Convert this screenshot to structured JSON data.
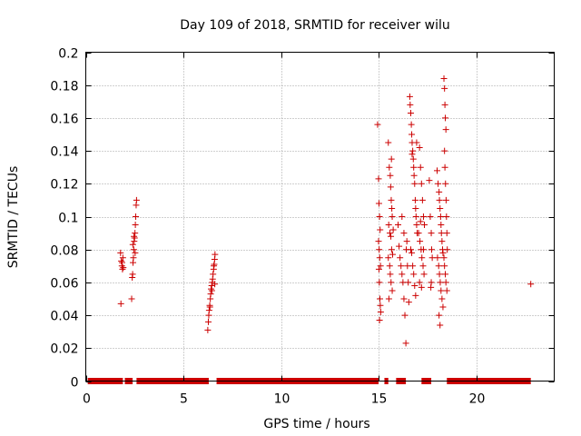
{
  "chart_data": {
    "type": "scatter",
    "title": "Day 109 of 2018, SRMTID for receiver wilu",
    "xlabel": "GPS time / hours",
    "ylabel": "SRMTID / TECUs",
    "xlim": [
      0,
      24
    ],
    "ylim": [
      0,
      0.2
    ],
    "xticks": [
      0,
      5,
      10,
      15,
      20
    ],
    "xtick_labels": [
      "0",
      "5",
      "10",
      "15",
      "20"
    ],
    "yticks": [
      0,
      0.02,
      0.04,
      0.06,
      0.08,
      0.1,
      0.12,
      0.14,
      0.16,
      0.18,
      0.2
    ],
    "ytick_labels": [
      "0",
      "0.02",
      "0.04",
      "0.06",
      "0.08",
      "0.1",
      "0.12",
      "0.14",
      "0.16",
      "0.18",
      "0.2"
    ],
    "grid": true,
    "marker": "+",
    "color": "#cc0000",
    "series": [
      {
        "points": [
          [
            1.78,
            0.078
          ],
          [
            1.82,
            0.073
          ],
          [
            1.85,
            0.07
          ],
          [
            1.88,
            0.068
          ],
          [
            1.8,
            0.047
          ],
          [
            1.9,
            0.075
          ],
          [
            1.86,
            0.072
          ],
          [
            1.92,
            0.069
          ],
          [
            2.35,
            0.05
          ],
          [
            2.38,
            0.063
          ],
          [
            2.4,
            0.065
          ],
          [
            2.42,
            0.072
          ],
          [
            2.44,
            0.075
          ],
          [
            2.46,
            0.08
          ],
          [
            2.48,
            0.085
          ],
          [
            2.5,
            0.087
          ],
          [
            2.52,
            0.09
          ],
          [
            2.54,
            0.095
          ],
          [
            2.56,
            0.1
          ],
          [
            2.58,
            0.107
          ],
          [
            2.6,
            0.11
          ],
          [
            2.47,
            0.088
          ],
          [
            2.53,
            0.078
          ],
          [
            2.41,
            0.083
          ],
          [
            6.25,
            0.031
          ],
          [
            6.28,
            0.036
          ],
          [
            6.3,
            0.04
          ],
          [
            6.32,
            0.043
          ],
          [
            6.35,
            0.046
          ],
          [
            6.38,
            0.05
          ],
          [
            6.4,
            0.053
          ],
          [
            6.42,
            0.056
          ],
          [
            6.45,
            0.058
          ],
          [
            6.48,
            0.06
          ],
          [
            6.5,
            0.062
          ],
          [
            6.52,
            0.065
          ],
          [
            6.55,
            0.068
          ],
          [
            6.58,
            0.071
          ],
          [
            6.6,
            0.074
          ],
          [
            6.62,
            0.077
          ],
          [
            6.36,
            0.045
          ],
          [
            6.46,
            0.055
          ],
          [
            6.56,
            0.07
          ],
          [
            6.61,
            0.059
          ],
          [
            14.95,
            0.156
          ],
          [
            15.0,
            0.123
          ],
          [
            15.02,
            0.108
          ],
          [
            15.05,
            0.1
          ],
          [
            15.08,
            0.092
          ],
          [
            15.0,
            0.085
          ],
          [
            15.03,
            0.08
          ],
          [
            15.06,
            0.075
          ],
          [
            15.1,
            0.07
          ],
          [
            15.02,
            0.068
          ],
          [
            15.04,
            0.06
          ],
          [
            15.07,
            0.05
          ],
          [
            15.09,
            0.046
          ],
          [
            15.11,
            0.042
          ],
          [
            15.05,
            0.037
          ],
          [
            15.5,
            0.145
          ],
          [
            15.55,
            0.13
          ],
          [
            15.6,
            0.125
          ],
          [
            15.62,
            0.118
          ],
          [
            15.65,
            0.11
          ],
          [
            15.68,
            0.105
          ],
          [
            15.7,
            0.1
          ],
          [
            15.52,
            0.095
          ],
          [
            15.58,
            0.09
          ],
          [
            15.63,
            0.088
          ],
          [
            15.67,
            0.08
          ],
          [
            15.72,
            0.077
          ],
          [
            15.5,
            0.075
          ],
          [
            15.57,
            0.07
          ],
          [
            15.6,
            0.065
          ],
          [
            15.64,
            0.06
          ],
          [
            15.7,
            0.055
          ],
          [
            15.53,
            0.05
          ],
          [
            15.66,
            0.135
          ],
          [
            15.75,
            0.092
          ],
          [
            16.0,
            0.095
          ],
          [
            16.05,
            0.082
          ],
          [
            16.1,
            0.075
          ],
          [
            16.15,
            0.07
          ],
          [
            16.2,
            0.065
          ],
          [
            16.25,
            0.06
          ],
          [
            16.3,
            0.05
          ],
          [
            16.35,
            0.04
          ],
          [
            16.4,
            0.023
          ],
          [
            16.42,
            0.08
          ],
          [
            16.45,
            0.085
          ],
          [
            16.48,
            0.07
          ],
          [
            16.52,
            0.06
          ],
          [
            16.55,
            0.048
          ],
          [
            16.3,
            0.09
          ],
          [
            16.2,
            0.1
          ],
          [
            16.6,
            0.173
          ],
          [
            16.62,
            0.168
          ],
          [
            16.65,
            0.163
          ],
          [
            16.68,
            0.156
          ],
          [
            16.7,
            0.15
          ],
          [
            16.72,
            0.145
          ],
          [
            16.75,
            0.14
          ],
          [
            16.78,
            0.135
          ],
          [
            16.8,
            0.13
          ],
          [
            16.82,
            0.125
          ],
          [
            16.85,
            0.12
          ],
          [
            16.88,
            0.11
          ],
          [
            16.9,
            0.105
          ],
          [
            16.92,
            0.1
          ],
          [
            16.95,
            0.095
          ],
          [
            16.98,
            0.09
          ],
          [
            16.65,
            0.08
          ],
          [
            16.7,
            0.078
          ],
          [
            16.75,
            0.07
          ],
          [
            16.8,
            0.065
          ],
          [
            16.85,
            0.058
          ],
          [
            16.9,
            0.052
          ],
          [
            16.72,
            0.138
          ],
          [
            16.95,
            0.145
          ],
          [
            17.1,
            0.142
          ],
          [
            17.15,
            0.13
          ],
          [
            17.2,
            0.12
          ],
          [
            17.25,
            0.11
          ],
          [
            17.3,
            0.1
          ],
          [
            17.35,
            0.095
          ],
          [
            17.05,
            0.09
          ],
          [
            17.12,
            0.085
          ],
          [
            17.18,
            0.08
          ],
          [
            17.22,
            0.075
          ],
          [
            17.28,
            0.07
          ],
          [
            17.33,
            0.065
          ],
          [
            17.1,
            0.06
          ],
          [
            17.2,
            0.057
          ],
          [
            17.3,
            0.08
          ],
          [
            17.15,
            0.097
          ],
          [
            17.6,
            0.122
          ],
          [
            17.65,
            0.1
          ],
          [
            17.7,
            0.09
          ],
          [
            17.72,
            0.08
          ],
          [
            17.75,
            0.075
          ],
          [
            17.7,
            0.06
          ],
          [
            17.68,
            0.057
          ],
          [
            18.0,
            0.128
          ],
          [
            18.05,
            0.12
          ],
          [
            18.1,
            0.115
          ],
          [
            18.12,
            0.11
          ],
          [
            18.15,
            0.105
          ],
          [
            18.18,
            0.1
          ],
          [
            18.2,
            0.095
          ],
          [
            18.22,
            0.09
          ],
          [
            18.25,
            0.085
          ],
          [
            18.28,
            0.08
          ],
          [
            18.3,
            0.078
          ],
          [
            18.02,
            0.075
          ],
          [
            18.08,
            0.07
          ],
          [
            18.12,
            0.065
          ],
          [
            18.16,
            0.06
          ],
          [
            18.2,
            0.055
          ],
          [
            18.25,
            0.05
          ],
          [
            18.3,
            0.045
          ],
          [
            18.1,
            0.04
          ],
          [
            18.15,
            0.034
          ],
          [
            18.35,
            0.184
          ],
          [
            18.38,
            0.178
          ],
          [
            18.4,
            0.168
          ],
          [
            18.42,
            0.16
          ],
          [
            18.45,
            0.153
          ],
          [
            18.38,
            0.14
          ],
          [
            18.4,
            0.13
          ],
          [
            18.43,
            0.12
          ],
          [
            18.46,
            0.11
          ],
          [
            18.48,
            0.1
          ],
          [
            18.5,
            0.09
          ],
          [
            18.52,
            0.08
          ],
          [
            18.38,
            0.07
          ],
          [
            18.42,
            0.065
          ],
          [
            18.45,
            0.06
          ],
          [
            18.5,
            0.055
          ],
          [
            18.35,
            0.075
          ],
          [
            22.8,
            0.059
          ]
        ]
      }
    ],
    "zero_segments": [
      [
        0.1,
        1.9
      ],
      [
        2.0,
        2.4
      ],
      [
        2.6,
        6.3
      ],
      [
        6.7,
        15.0
      ],
      [
        15.3,
        15.5
      ],
      [
        15.9,
        16.4
      ],
      [
        17.2,
        17.7
      ],
      [
        18.5,
        22.8
      ]
    ]
  }
}
